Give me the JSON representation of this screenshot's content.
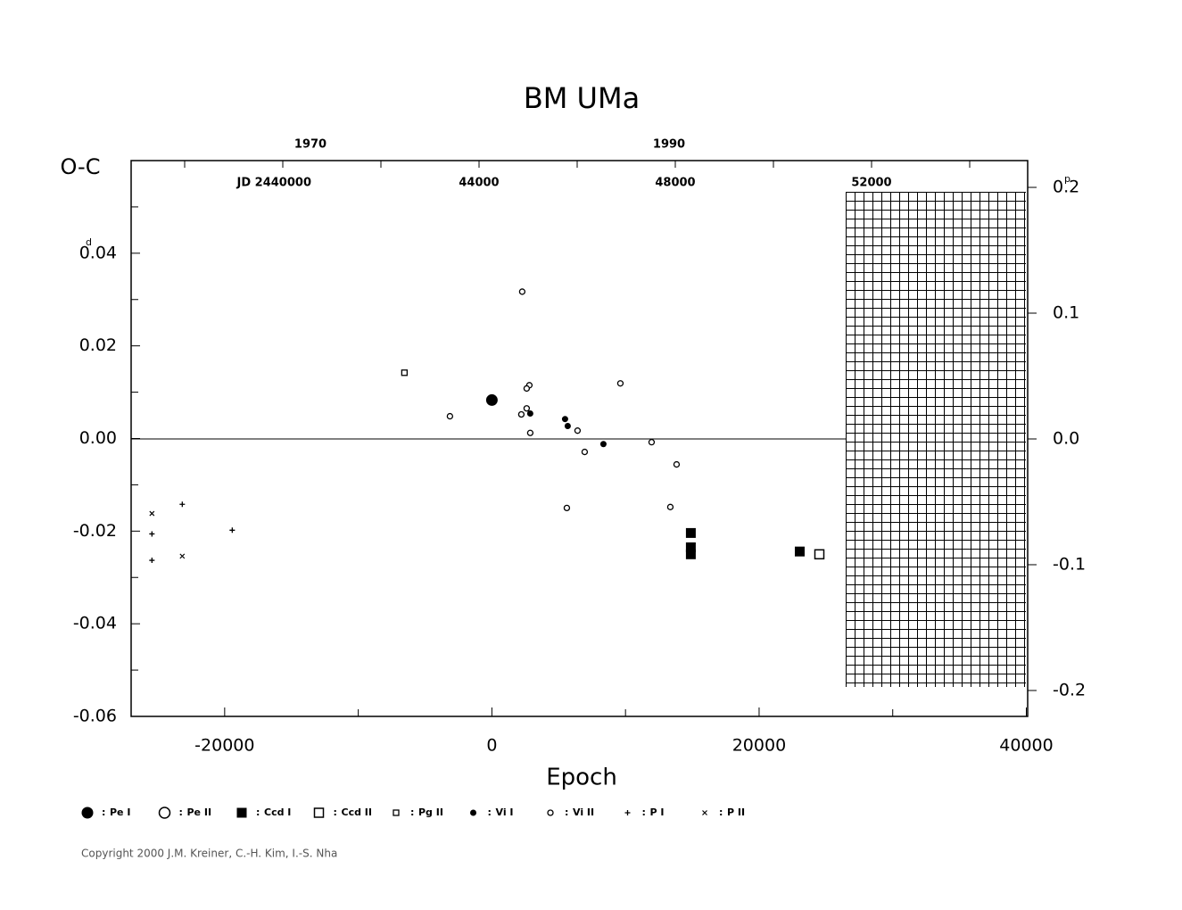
{
  "chart_data": {
    "type": "scatter",
    "title": "BM UMa",
    "ylabel": "O-C",
    "xlabel": "Epoch",
    "ylabel_unit": "d",
    "y2label_unit": "p",
    "color": "#000000",
    "xlim": [
      -27000,
      40100
    ],
    "xticks": [
      -20000,
      0,
      20000,
      40000
    ],
    "xminorticks": [
      -10000,
      10000,
      30000
    ],
    "ylim": [
      -0.06,
      0.06
    ],
    "yticks": [
      -0.06,
      -0.04,
      -0.02,
      {
        "value": 0,
        "label": "0.00"
      },
      0.02,
      0.04
    ],
    "yminorticks": [
      -0.05,
      -0.03,
      -0.01,
      0.01,
      0.03,
      0.05
    ],
    "y2lim": [
      -0.2206,
      0.2213
    ],
    "y2ticks": [
      -0.2,
      -0.1,
      {
        "value": 0,
        "label": "0.0"
      },
      0.1,
      0.2
    ],
    "x2lim": [
      1960,
      2010
    ],
    "x2ticks": [
      1970,
      1990
    ],
    "x3lim": [
      2436909,
      2455182
    ],
    "x3ticks": [
      {
        "value": 2440000,
        "label": "JD 2440000"
      },
      {
        "value": 2444000,
        "label": "44000"
      },
      {
        "value": 2448000,
        "label": "48000"
      },
      {
        "value": 2452000,
        "label": "52000"
      }
    ],
    "x3minorticks": [
      2438000,
      2442000,
      2446000,
      2450000,
      2454000
    ],
    "legend_separator": ":",
    "series": [
      {
        "name": "Pe I",
        "marker": "disc-large",
        "x": [
          0
        ],
        "values": [
          0.0083
        ]
      },
      {
        "name": "Pe II",
        "marker": "circle-large",
        "x": [],
        "values": []
      },
      {
        "name": "Ccd I",
        "marker": "square-filled",
        "x": [
          14890,
          14890,
          14890,
          23040
        ],
        "values": [
          -0.0204,
          -0.0235,
          -0.025,
          -0.0244
        ]
      },
      {
        "name": "Ccd II",
        "marker": "square-open",
        "x": [
          24510
        ],
        "values": [
          -0.025
        ]
      },
      {
        "name": "Pg II",
        "marker": "square-small",
        "x": [
          -6545
        ],
        "values": [
          0.0142
        ]
      },
      {
        "name": "Vi I",
        "marker": "disc-small",
        "x": [
          2870,
          5476,
          5676,
          8348
        ],
        "values": [
          0.0054,
          0.0042,
          0.0027,
          -0.0012
        ]
      },
      {
        "name": "Vi II",
        "marker": "circle-small",
        "x": [
          2270,
          -3139,
          2805,
          2604,
          2204,
          2604,
          2871,
          5610,
          6411,
          6945,
          9617,
          11954,
          13824,
          13356
        ],
        "values": [
          0.0317,
          0.0048,
          0.0115,
          0.0108,
          0.0052,
          0.0065,
          0.0012,
          -0.015,
          0.0017,
          -0.0029,
          0.0119,
          -0.0008,
          -0.0056,
          -0.0148
        ]
      },
      {
        "name": "P I",
        "marker": "plus",
        "x": [
          -25443,
          -25443,
          -23173,
          -19433
        ],
        "values": [
          -0.0206,
          -0.0263,
          -0.0142,
          -0.0198
        ]
      },
      {
        "name": "P II",
        "marker": "cross",
        "x": [
          -25443,
          -23173
        ],
        "values": [
          -0.0162,
          -0.0254
        ]
      }
    ]
  },
  "footer": {
    "copyright": "Copyright 2000 J.M. Kreiner, C.-H. Kim, I.-S. Nha"
  }
}
